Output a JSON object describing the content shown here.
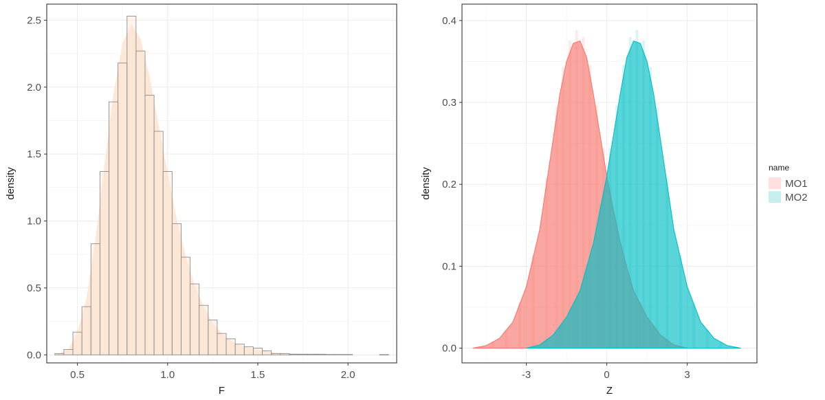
{
  "chart_data": [
    {
      "type": "histogram",
      "xlabel": "F",
      "ylabel": "density",
      "xlim": [
        0.33,
        2.27
      ],
      "ylim": [
        -0.06,
        2.62
      ],
      "xticks": [
        0.5,
        1.0,
        1.5,
        2.0
      ],
      "xtick_labels": [
        "0.5",
        "1.0",
        "1.5",
        "2.0"
      ],
      "yticks": [
        0.0,
        0.5,
        1.0,
        1.5,
        2.0,
        2.5
      ],
      "ytick_labels": [
        "0.0",
        "0.5",
        "1.0",
        "1.5",
        "2.0",
        "2.5"
      ],
      "grid": true,
      "bin_width": 0.05,
      "bins": [
        {
          "x0": 0.375,
          "x1": 0.425,
          "density": 0.01
        },
        {
          "x0": 0.425,
          "x1": 0.475,
          "density": 0.04
        },
        {
          "x0": 0.475,
          "x1": 0.525,
          "density": 0.17
        },
        {
          "x0": 0.525,
          "x1": 0.575,
          "density": 0.36
        },
        {
          "x0": 0.575,
          "x1": 0.625,
          "density": 0.83
        },
        {
          "x0": 0.625,
          "x1": 0.675,
          "density": 1.37
        },
        {
          "x0": 0.675,
          "x1": 0.725,
          "density": 1.89
        },
        {
          "x0": 0.725,
          "x1": 0.775,
          "density": 2.18
        },
        {
          "x0": 0.775,
          "x1": 0.825,
          "density": 2.53
        },
        {
          "x0": 0.825,
          "x1": 0.875,
          "density": 2.27
        },
        {
          "x0": 0.875,
          "x1": 0.925,
          "density": 1.94
        },
        {
          "x0": 0.925,
          "x1": 0.975,
          "density": 1.67
        },
        {
          "x0": 0.975,
          "x1": 1.025,
          "density": 1.37
        },
        {
          "x0": 1.025,
          "x1": 1.075,
          "density": 0.98
        },
        {
          "x0": 1.075,
          "x1": 1.125,
          "density": 0.73
        },
        {
          "x0": 1.125,
          "x1": 1.175,
          "density": 0.53
        },
        {
          "x0": 1.175,
          "x1": 1.225,
          "density": 0.37
        },
        {
          "x0": 1.225,
          "x1": 1.275,
          "density": 0.26
        },
        {
          "x0": 1.275,
          "x1": 1.325,
          "density": 0.16
        },
        {
          "x0": 1.325,
          "x1": 1.375,
          "density": 0.12
        },
        {
          "x0": 1.375,
          "x1": 1.425,
          "density": 0.08
        },
        {
          "x0": 1.425,
          "x1": 1.475,
          "density": 0.06
        },
        {
          "x0": 1.475,
          "x1": 1.525,
          "density": 0.05
        },
        {
          "x0": 1.525,
          "x1": 1.575,
          "density": 0.03
        },
        {
          "x0": 1.575,
          "x1": 1.625,
          "density": 0.01
        },
        {
          "x0": 1.625,
          "x1": 1.675,
          "density": 0.01
        },
        {
          "x0": 1.675,
          "x1": 1.725,
          "density": 0.005
        },
        {
          "x0": 1.725,
          "x1": 1.775,
          "density": 0.005
        },
        {
          "x0": 1.775,
          "x1": 1.825,
          "density": 0.005
        },
        {
          "x0": 1.825,
          "x1": 1.875,
          "density": 0.005
        },
        {
          "x0": 1.875,
          "x1": 1.925,
          "density": 0.003
        },
        {
          "x0": 1.925,
          "x1": 1.975,
          "density": 0.003
        },
        {
          "x0": 1.975,
          "x1": 2.025,
          "density": 0.003
        },
        {
          "x0": 2.175,
          "x1": 2.225,
          "density": 0.002
        }
      ],
      "density_curve": {
        "x": [
          0.38,
          0.45,
          0.5,
          0.55,
          0.6,
          0.65,
          0.7,
          0.75,
          0.8,
          0.85,
          0.9,
          0.95,
          1.0,
          1.05,
          1.1,
          1.15,
          1.2,
          1.25,
          1.3,
          1.35,
          1.4,
          1.5,
          1.6,
          1.8,
          2.0,
          2.22
        ],
        "y": [
          0.0,
          0.04,
          0.17,
          0.42,
          0.86,
          1.42,
          1.95,
          2.33,
          2.47,
          2.36,
          2.08,
          1.72,
          1.36,
          1.02,
          0.74,
          0.52,
          0.36,
          0.24,
          0.16,
          0.11,
          0.07,
          0.035,
          0.015,
          0.006,
          0.002,
          0.0
        ]
      },
      "colors": {
        "bar_fill": "#fbe6d6",
        "bar_outline": "#8c8c8c",
        "density_fill": "#fde6d3"
      }
    },
    {
      "type": "density",
      "xlabel": "Z",
      "ylabel": "density",
      "xlim": [
        -5.4,
        5.6
      ],
      "ylim": [
        -0.018,
        0.42
      ],
      "xticks": [
        -3,
        0,
        3
      ],
      "xtick_labels": [
        "-3",
        "0",
        "3"
      ],
      "yticks": [
        0.0,
        0.1,
        0.2,
        0.3,
        0.4
      ],
      "ytick_labels": [
        "0.0",
        "0.1",
        "0.2",
        "0.3",
        "0.4"
      ],
      "grid": true,
      "legend": {
        "title": "name",
        "position": "right"
      },
      "series": [
        {
          "name": "MO1",
          "color": "#f8766d",
          "hist_color": "#fde0df",
          "x": [
            -5.0,
            -4.5,
            -4.0,
            -3.5,
            -3.0,
            -2.5,
            -2.0,
            -1.75,
            -1.5,
            -1.25,
            -1.0,
            -0.75,
            -0.5,
            -0.25,
            0.0,
            0.25,
            0.5,
            0.75,
            1.0,
            1.5,
            2.0,
            2.5,
            3.0
          ],
          "y": [
            0.0,
            0.003,
            0.012,
            0.032,
            0.075,
            0.145,
            0.255,
            0.31,
            0.35,
            0.372,
            0.375,
            0.355,
            0.31,
            0.26,
            0.21,
            0.168,
            0.13,
            0.098,
            0.07,
            0.038,
            0.016,
            0.004,
            0.0
          ]
        },
        {
          "name": "MO2",
          "color": "#00bfc4",
          "hist_color": "#c8eff0",
          "x": [
            -3.0,
            -2.5,
            -2.0,
            -1.5,
            -1.0,
            -0.5,
            0.0,
            0.25,
            0.5,
            0.75,
            1.0,
            1.25,
            1.5,
            1.75,
            2.0,
            2.5,
            3.0,
            3.5,
            4.0,
            4.5,
            5.0
          ],
          "y": [
            0.0,
            0.004,
            0.016,
            0.038,
            0.07,
            0.128,
            0.21,
            0.26,
            0.31,
            0.355,
            0.375,
            0.372,
            0.35,
            0.31,
            0.255,
            0.145,
            0.075,
            0.032,
            0.012,
            0.003,
            0.0
          ]
        }
      ]
    }
  ]
}
